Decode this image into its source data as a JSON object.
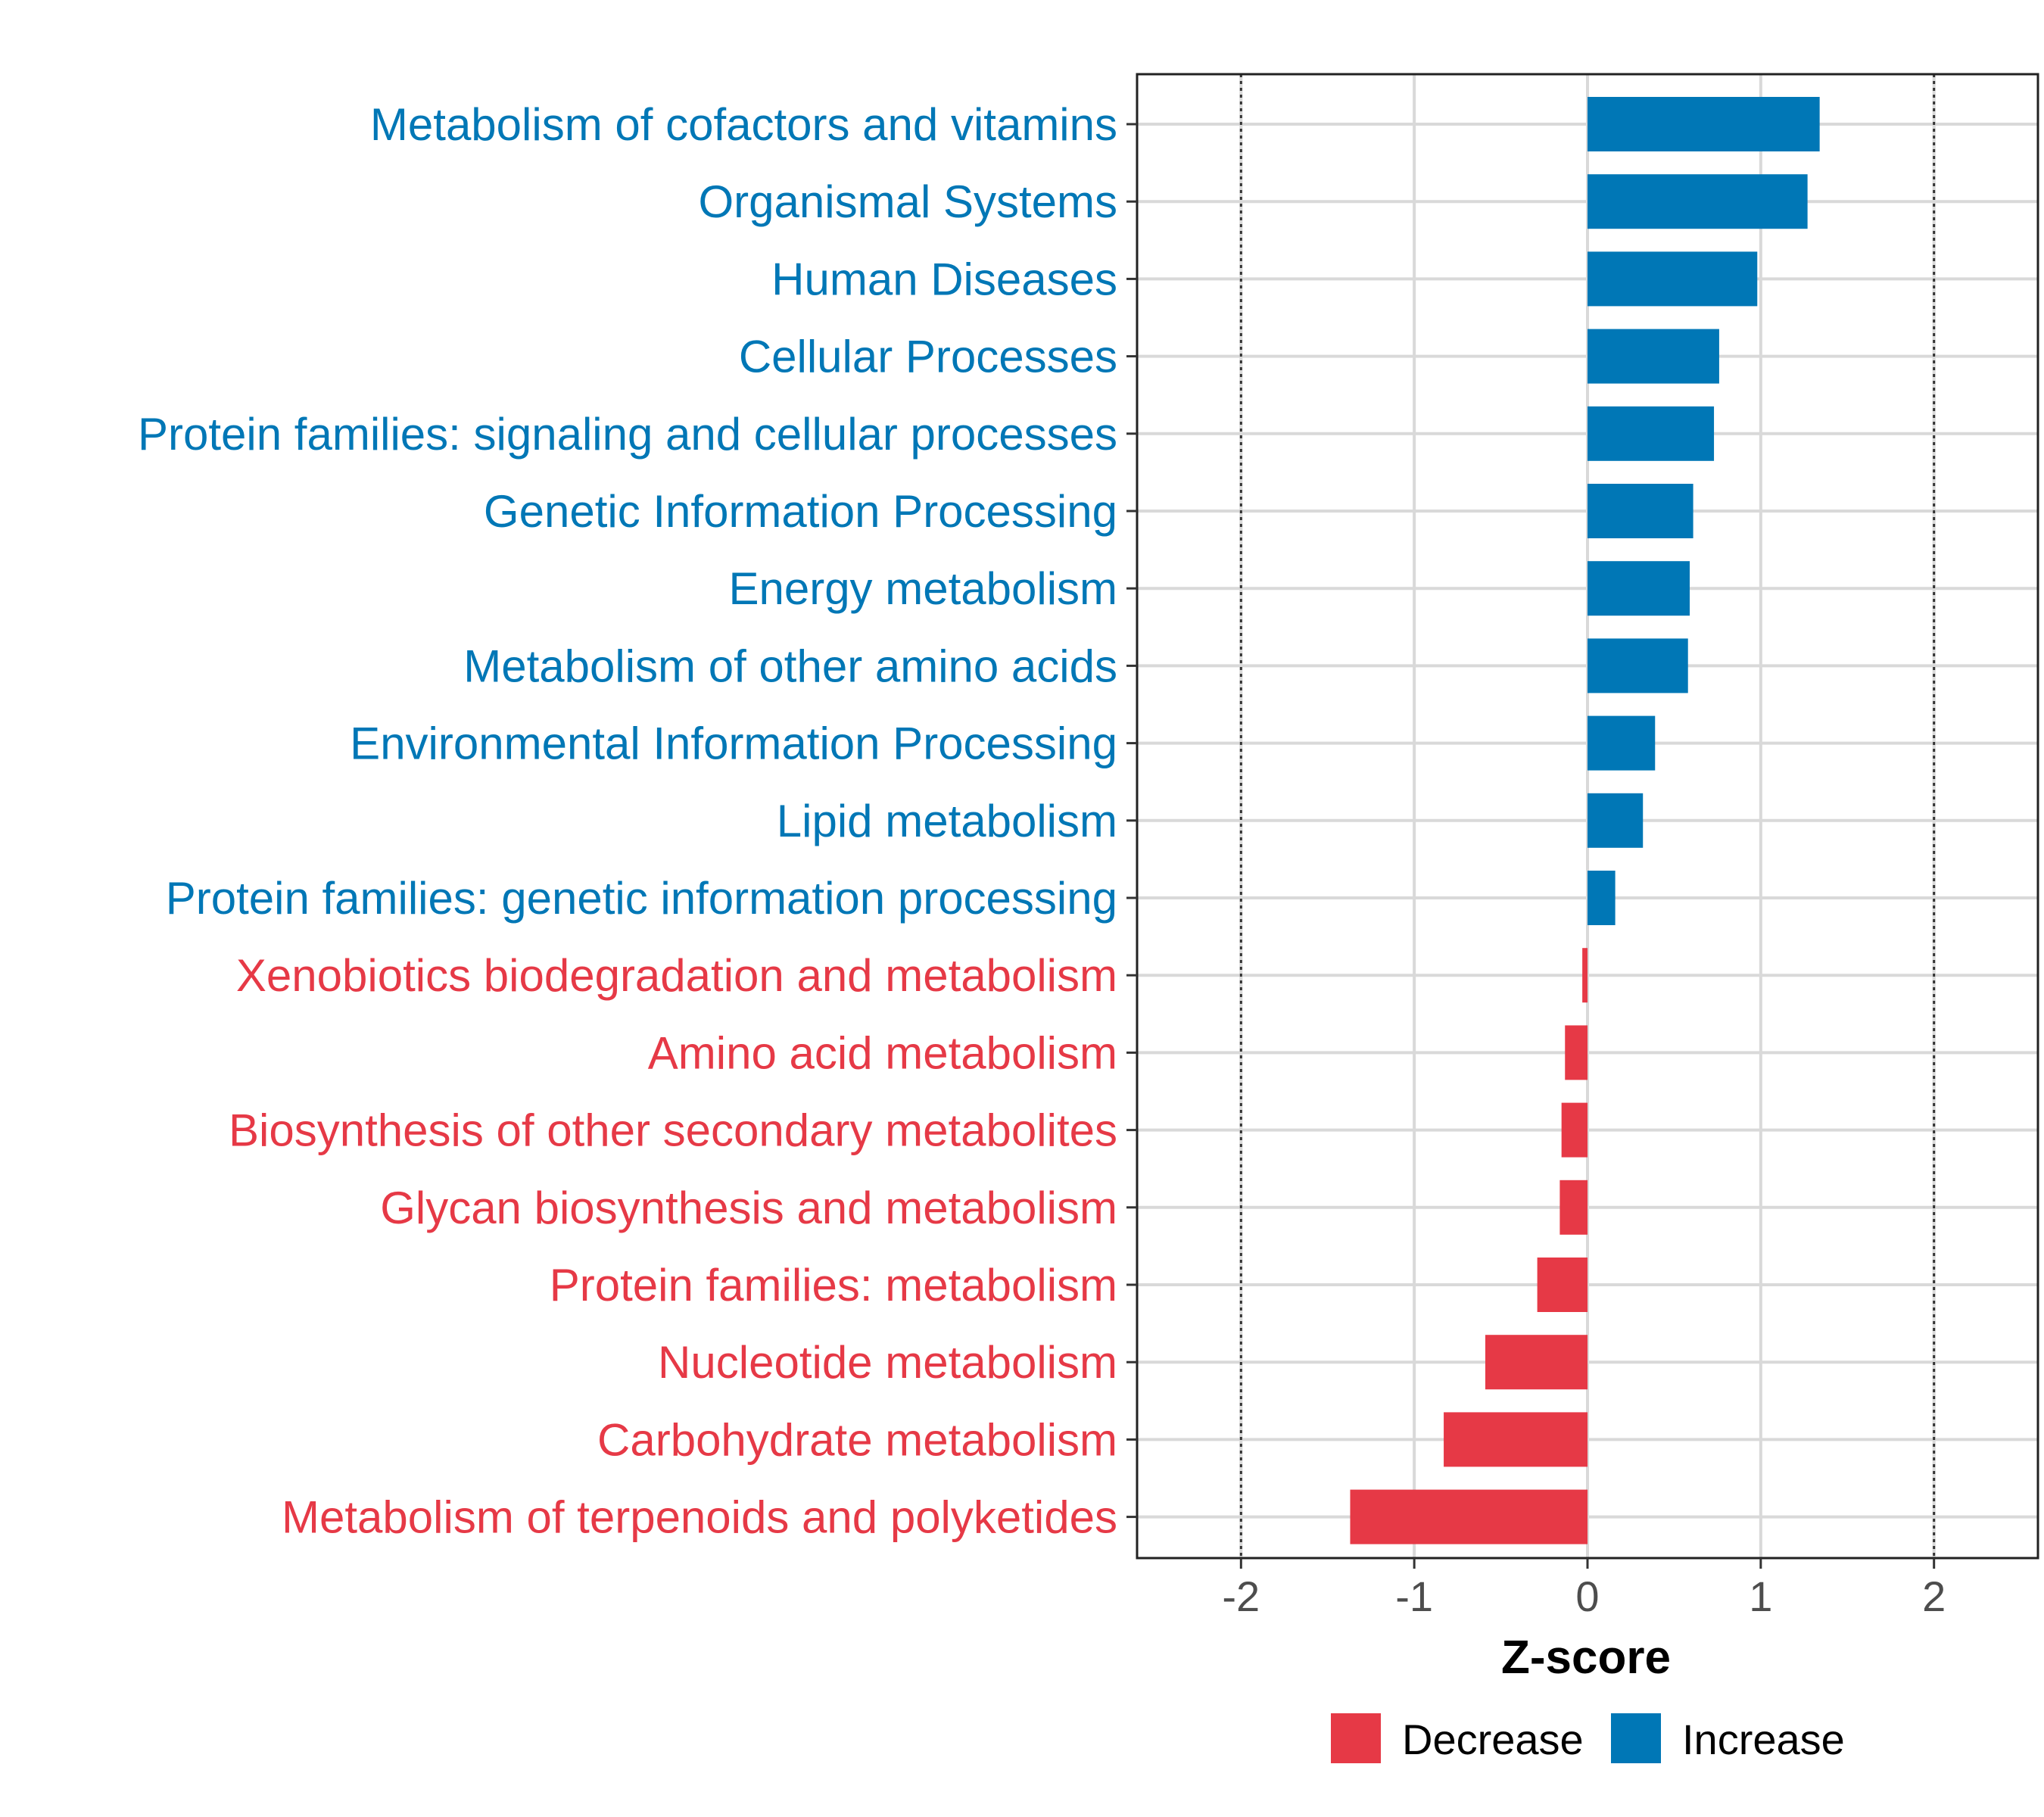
{
  "chart_data": {
    "type": "bar",
    "orientation": "horizontal",
    "title": "",
    "xlabel": "Z-score",
    "ylabel": "",
    "xlim": [
      -2.6,
      2.6
    ],
    "x_ticks": [
      "-2",
      "-1",
      "0",
      "1",
      "2"
    ],
    "x_tick_values": [
      -2,
      -1,
      0,
      1,
      2
    ],
    "reference_lines": [
      -2,
      2
    ],
    "grid": true,
    "legend_position": "bottom",
    "colors": {
      "Decrease": "#e63946",
      "Increase": "#0077b6"
    },
    "legend": [
      {
        "label": "Decrease",
        "color": "#e63946"
      },
      {
        "label": "Increase",
        "color": "#0077b6"
      }
    ],
    "categories": [
      "Metabolism of cofactors and vitamins",
      "Organismal Systems",
      "Human Diseases",
      "Cellular Processes",
      "Protein families: signaling and cellular processes",
      "Genetic Information Processing",
      "Energy metabolism",
      "Metabolism of other amino acids",
      "Environmental Information Processing",
      "Lipid metabolism",
      "Protein families: genetic information processing",
      "Xenobiotics biodegradation and metabolism",
      "Amino acid metabolism",
      "Biosynthesis of other secondary metabolites",
      "Glycan biosynthesis and metabolism",
      "Protein families: metabolism",
      "Nucleotide metabolism",
      "Carbohydrate metabolism",
      "Metabolism of terpenoids and polyketides"
    ],
    "values": [
      1.34,
      1.27,
      0.98,
      0.76,
      0.73,
      0.61,
      0.59,
      0.58,
      0.39,
      0.32,
      0.16,
      -0.03,
      -0.13,
      -0.15,
      -0.16,
      -0.29,
      -0.59,
      -0.83,
      -1.37
    ],
    "groups": [
      "Increase",
      "Increase",
      "Increase",
      "Increase",
      "Increase",
      "Increase",
      "Increase",
      "Increase",
      "Increase",
      "Increase",
      "Increase",
      "Decrease",
      "Decrease",
      "Decrease",
      "Decrease",
      "Decrease",
      "Decrease",
      "Decrease",
      "Decrease"
    ]
  }
}
